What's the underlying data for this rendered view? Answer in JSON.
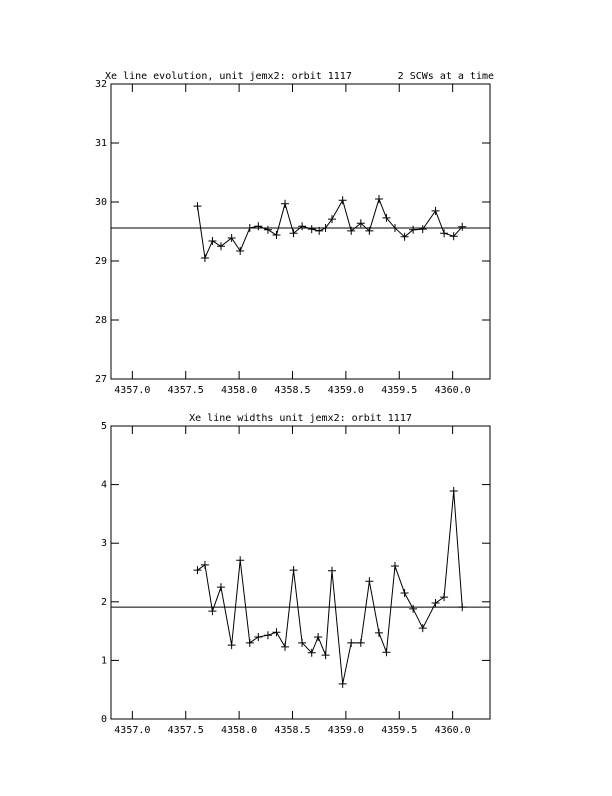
{
  "chart_data": [
    {
      "type": "line",
      "title": "Xe line evolution, unit jemx2: orbit 1117",
      "subtitle": "2 SCWs at a time",
      "xlim": [
        4356.8,
        4360.35
      ],
      "ylim": [
        27,
        32
      ],
      "xticks": [
        {
          "value": 4357.0,
          "label": "4357.0"
        },
        {
          "value": 4357.5,
          "label": "4357.5"
        },
        {
          "value": 4358.0,
          "label": "4358.0"
        },
        {
          "value": 4358.5,
          "label": "4358.5"
        },
        {
          "value": 4359.0,
          "label": "4359.0"
        },
        {
          "value": 4359.5,
          "label": "4359.5"
        },
        {
          "value": 4360.0,
          "label": "4360.0"
        }
      ],
      "yticks": [
        27,
        28,
        29,
        30,
        31,
        32
      ],
      "reference_line": 29.56,
      "color": "#000000",
      "x": [
        4357.61,
        4357.68,
        4357.75,
        4357.83,
        4357.93,
        4358.01,
        4358.1,
        4358.18,
        4358.27,
        4358.35,
        4358.43,
        4358.51,
        4358.59,
        4358.68,
        4358.75,
        4358.81,
        4358.87,
        4358.97,
        4359.05,
        4359.14,
        4359.22,
        4359.31,
        4359.38,
        4359.46,
        4359.55,
        4359.63,
        4359.72,
        4359.84,
        4359.92,
        4360.01,
        4360.09
      ],
      "values": [
        29.93,
        29.05,
        29.34,
        29.25,
        29.39,
        29.17,
        29.56,
        29.59,
        29.53,
        29.44,
        29.97,
        29.47,
        29.59,
        29.54,
        29.51,
        29.56,
        29.71,
        30.03,
        29.51,
        29.64,
        29.51,
        30.05,
        29.73,
        29.56,
        29.41,
        29.53,
        29.54,
        29.85,
        29.47,
        29.42,
        29.58
      ]
    },
    {
      "type": "line",
      "title": "Xe line widths unit jemx2: orbit 1117",
      "xlim": [
        4356.8,
        4360.35
      ],
      "ylim": [
        0,
        5
      ],
      "xticks": [
        {
          "value": 4357.0,
          "label": "4357.0"
        },
        {
          "value": 4357.5,
          "label": "4357.5"
        },
        {
          "value": 4358.0,
          "label": "4358.0"
        },
        {
          "value": 4358.5,
          "label": "4358.5"
        },
        {
          "value": 4359.0,
          "label": "4359.0"
        },
        {
          "value": 4359.5,
          "label": "4359.5"
        },
        {
          "value": 4360.0,
          "label": "4360.0"
        }
      ],
      "yticks": [
        0,
        1,
        2,
        3,
        4,
        5
      ],
      "reference_line": 1.91,
      "color": "#000000",
      "x": [
        4357.61,
        4357.68,
        4357.75,
        4357.83,
        4357.93,
        4358.01,
        4358.1,
        4358.18,
        4358.27,
        4358.35,
        4358.43,
        4358.51,
        4358.59,
        4358.68,
        4358.74,
        4358.81,
        4358.87,
        4358.97,
        4359.05,
        4359.14,
        4359.22,
        4359.31,
        4359.38,
        4359.46,
        4359.55,
        4359.63,
        4359.72,
        4359.84,
        4359.92,
        4360.01,
        4360.09
      ],
      "values": [
        2.54,
        2.63,
        1.84,
        2.25,
        1.26,
        2.71,
        1.3,
        1.4,
        1.43,
        1.48,
        1.23,
        2.54,
        1.3,
        1.13,
        1.4,
        1.09,
        2.53,
        0.6,
        1.3,
        1.3,
        2.35,
        1.47,
        1.14,
        2.61,
        2.15,
        1.88,
        1.55,
        1.98,
        2.08,
        3.89,
        1.91
      ]
    }
  ]
}
